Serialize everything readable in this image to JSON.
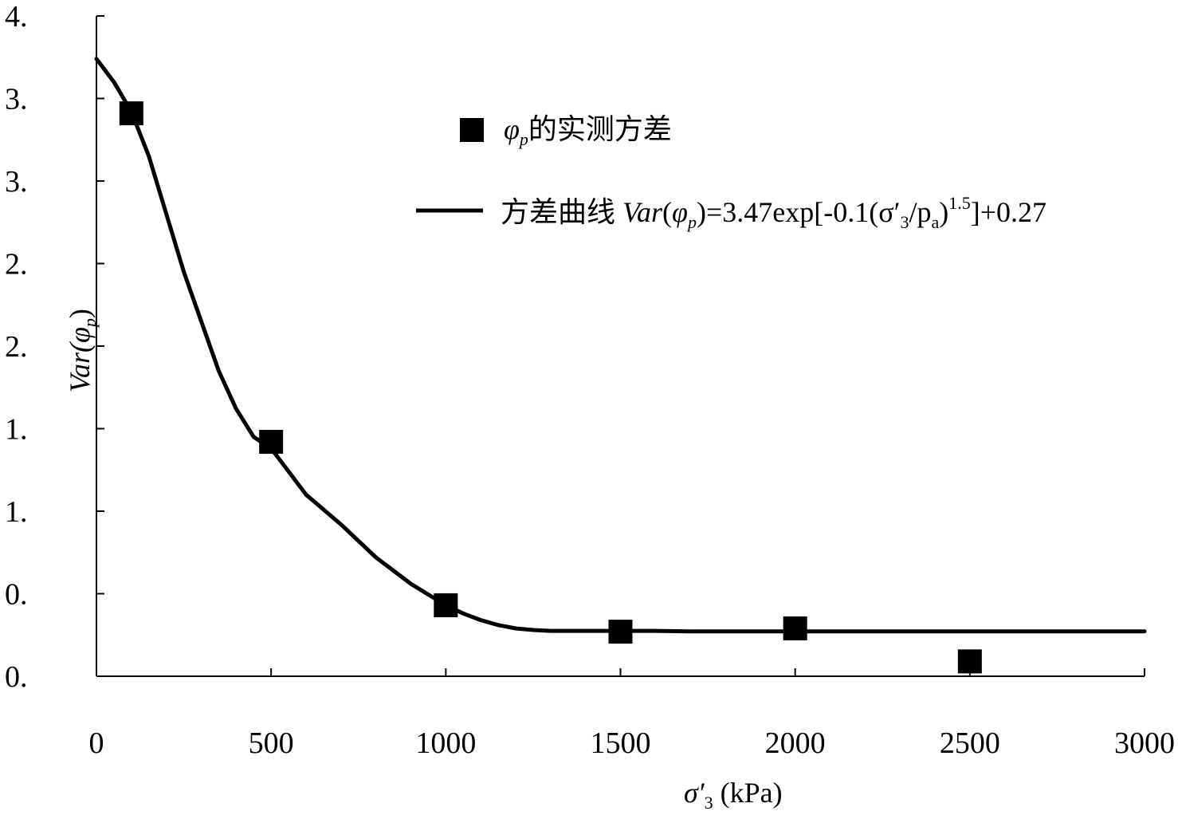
{
  "chart_data": {
    "type": "scatter",
    "xlabel": {
      "sym": "σ′",
      "sub": "3",
      "unit": " (kPa)"
    },
    "ylabel": {
      "pre": "Var(",
      "sym": "φ",
      "sub": "p",
      "post": ")"
    },
    "xlim": [
      0,
      3000
    ],
    "ylim": [
      0,
      4
    ],
    "x_ticks": [
      0,
      500,
      1000,
      1500,
      2000,
      2500,
      3000
    ],
    "x_tick_labels": [
      "0",
      "500",
      "1000",
      "1500",
      "2000",
      "2500",
      "3000"
    ],
    "y_ticks": [
      0,
      0.5,
      1,
      1.5,
      2,
      2.5,
      3,
      3.5,
      4
    ],
    "y_tick_labels": [
      "0.",
      "0.",
      "1.",
      "1.",
      "2.",
      "2.",
      "3.",
      "3.",
      "4."
    ],
    "grid": false,
    "legend_position": "top-right",
    "legend": [
      {
        "marker": "square",
        "sym": "φ",
        "sub": "p",
        "text": "的实测方差"
      },
      {
        "marker": "line",
        "prefix": "方差曲线 ",
        "formula_var": "Var",
        "formula_open": "(",
        "sym": "φ",
        "sub": "p",
        "formula_mid": ")=3.47exp[-0.1(σ′",
        "sub2": "3",
        "slash": "/p",
        "sub3": "a",
        "close": ")",
        "sup": "1.5",
        "tail": "]+0.27"
      }
    ],
    "series": [
      {
        "kind": "scatter",
        "marker": "square",
        "x": [
          100,
          500,
          1000,
          1500,
          2000,
          2500
        ],
        "y": [
          3.41,
          1.42,
          0.43,
          0.27,
          0.29,
          0.09
        ]
      },
      {
        "kind": "line",
        "x": [
          0,
          50,
          100,
          150,
          200,
          250,
          300,
          350,
          400,
          450,
          500,
          550,
          600,
          700,
          800,
          900,
          1000,
          1050,
          1100,
          1150,
          1200,
          1250,
          1300,
          1400,
          1500,
          1600,
          1700,
          1800,
          2000,
          2500,
          3000
        ],
        "y": [
          3.74,
          3.6,
          3.42,
          3.15,
          2.8,
          2.45,
          2.15,
          1.85,
          1.62,
          1.45,
          1.38,
          1.24,
          1.1,
          0.92,
          0.72,
          0.56,
          0.43,
          0.38,
          0.34,
          0.31,
          0.29,
          0.28,
          0.275,
          0.275,
          0.275,
          0.275,
          0.272,
          0.272,
          0.272,
          0.272,
          0.272
        ]
      }
    ]
  }
}
